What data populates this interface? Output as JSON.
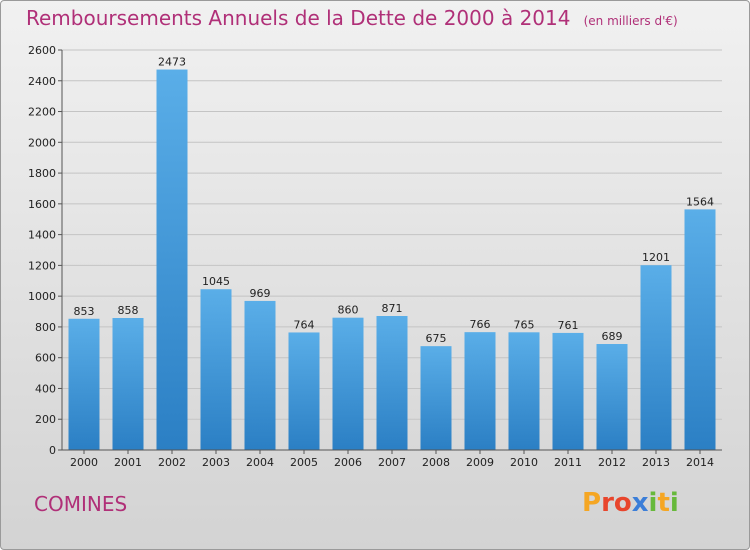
{
  "title": "Remboursements Annuels de la Dette de 2000 à 2014",
  "subtitle": "(en milliers d'€)",
  "city": "COMINES",
  "logo": "Proxiti",
  "colors": {
    "bar_light": "#5aaee8",
    "bar_dark": "#2b7fc4",
    "title": "#b03078"
  },
  "chart_data": {
    "type": "bar",
    "title": "Remboursements Annuels de la Dette de 2000 à 2014",
    "xlabel": "",
    "ylabel": "",
    "categories": [
      "2000",
      "2001",
      "2002",
      "2003",
      "2004",
      "2005",
      "2006",
      "2007",
      "2008",
      "2009",
      "2010",
      "2011",
      "2012",
      "2013",
      "2014"
    ],
    "values": [
      853,
      858,
      2473,
      1045,
      969,
      764,
      860,
      871,
      675,
      766,
      765,
      761,
      689,
      1201,
      1564
    ],
    "ylim": [
      0,
      2600
    ],
    "yticks": [
      0,
      200,
      400,
      600,
      800,
      1000,
      1200,
      1400,
      1600,
      1800,
      2000,
      2200,
      2400,
      2600
    ],
    "grid": true,
    "legend": "none"
  }
}
